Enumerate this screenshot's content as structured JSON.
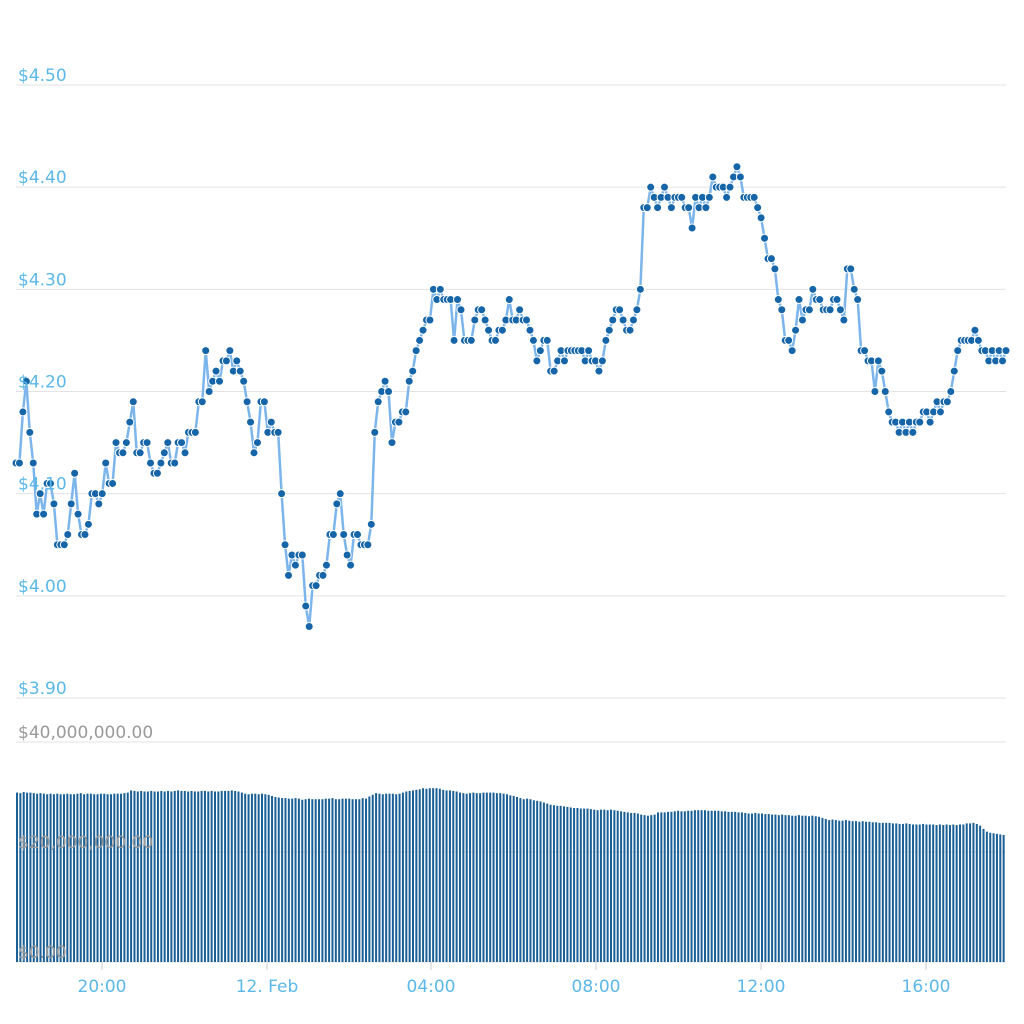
{
  "chart_data": {
    "type": "line",
    "price_axis": {
      "tick_labels": [
        "$3.90",
        "$4.00",
        "$4.10",
        "$4.20",
        "$4.30",
        "$4.40",
        "$4.50"
      ],
      "ticks": [
        3.9,
        4.0,
        4.1,
        4.2,
        4.3,
        4.4,
        4.5
      ],
      "range": [
        3.9,
        4.5
      ]
    },
    "volume_axis": {
      "tick_labels": [
        "$0.00",
        "$20,000,000.00",
        "$40,000,000.00"
      ],
      "ticks": [
        0,
        20000000,
        40000000
      ],
      "range": [
        0,
        40000000
      ]
    },
    "x_axis": {
      "tick_labels": [
        "20:00",
        "12. Feb",
        "04:00",
        "08:00",
        "12:00",
        "16:00"
      ]
    },
    "grid": true,
    "legend": "none",
    "colors": {
      "price_line": "#7cb5ec",
      "price_marker": "#1565a8",
      "volume_bar": "#1a5f96",
      "label": "#5bb8e8"
    },
    "series": [
      {
        "kind": "price",
        "values": [
          4.13,
          4.13,
          4.18,
          4.21,
          4.16,
          4.13,
          4.08,
          4.1,
          4.08,
          4.11,
          4.11,
          4.09,
          4.05,
          4.05,
          4.05,
          4.06,
          4.09,
          4.12,
          4.08,
          4.06,
          4.06,
          4.07,
          4.1,
          4.1,
          4.09,
          4.1,
          4.13,
          4.11,
          4.11,
          4.15,
          4.14,
          4.14,
          4.15,
          4.17,
          4.19,
          4.14,
          4.14,
          4.15,
          4.15,
          4.13,
          4.12,
          4.12,
          4.13,
          4.14,
          4.15,
          4.13,
          4.13,
          4.15,
          4.15,
          4.14,
          4.16,
          4.16,
          4.16,
          4.19,
          4.19,
          4.24,
          4.2,
          4.21,
          4.22,
          4.21,
          4.23,
          4.23,
          4.24,
          4.22,
          4.23,
          4.22,
          4.21,
          4.19,
          4.17,
          4.14,
          4.15,
          4.19,
          4.19,
          4.16,
          4.17,
          4.16,
          4.16,
          4.1,
          4.05,
          4.02,
          4.04,
          4.03,
          4.04,
          4.04,
          3.99,
          3.97,
          4.01,
          4.01,
          4.02,
          4.02,
          4.03,
          4.06,
          4.06,
          4.09,
          4.1,
          4.06,
          4.04,
          4.03,
          4.06,
          4.06,
          4.05,
          4.05,
          4.05,
          4.07,
          4.16,
          4.19,
          4.2,
          4.21,
          4.2,
          4.15,
          4.17,
          4.17,
          4.18,
          4.18,
          4.21,
          4.22,
          4.24,
          4.25,
          4.26,
          4.27,
          4.27,
          4.3,
          4.29,
          4.3,
          4.29,
          4.29,
          4.29,
          4.25,
          4.29,
          4.28,
          4.25,
          4.25,
          4.25,
          4.27,
          4.28,
          4.28,
          4.27,
          4.26,
          4.25,
          4.25,
          4.26,
          4.26,
          4.27,
          4.29,
          4.27,
          4.27,
          4.28,
          4.27,
          4.27,
          4.26,
          4.25,
          4.23,
          4.24,
          4.25,
          4.25,
          4.22,
          4.22,
          4.23,
          4.24,
          4.23,
          4.24,
          4.24,
          4.24,
          4.24,
          4.24,
          4.23,
          4.24,
          4.23,
          4.23,
          4.22,
          4.23,
          4.25,
          4.26,
          4.27,
          4.28,
          4.28,
          4.27,
          4.26,
          4.26,
          4.27,
          4.28,
          4.3,
          4.38,
          4.38,
          4.4,
          4.39,
          4.38,
          4.39,
          4.4,
          4.39,
          4.38,
          4.39,
          4.39,
          4.39,
          4.38,
          4.38,
          4.36,
          4.39,
          4.38,
          4.39,
          4.38,
          4.39,
          4.41,
          4.4,
          4.4,
          4.4,
          4.39,
          4.4,
          4.41,
          4.42,
          4.41,
          4.39,
          4.39,
          4.39,
          4.39,
          4.38,
          4.37,
          4.35,
          4.33,
          4.33,
          4.32,
          4.29,
          4.28,
          4.25,
          4.25,
          4.24,
          4.26,
          4.29,
          4.27,
          4.28,
          4.28,
          4.3,
          4.29,
          4.29,
          4.28,
          4.28,
          4.28,
          4.29,
          4.29,
          4.28,
          4.27,
          4.32,
          4.32,
          4.3,
          4.29,
          4.24,
          4.24,
          4.23,
          4.23,
          4.2,
          4.23,
          4.22,
          4.2,
          4.18,
          4.17,
          4.17,
          4.16,
          4.17,
          4.16,
          4.17,
          4.16,
          4.17,
          4.17,
          4.18,
          4.18,
          4.17,
          4.18,
          4.19,
          4.18,
          4.19,
          4.19,
          4.2,
          4.22,
          4.24,
          4.25,
          4.25,
          4.25,
          4.25,
          4.26,
          4.25,
          4.24,
          4.24,
          4.23,
          4.24,
          4.23,
          4.24,
          4.23,
          4.24
        ]
      },
      {
        "kind": "volume",
        "values": [
          30.8,
          30.7,
          30.9,
          30.8,
          30.8,
          30.7,
          30.6,
          30.7,
          30.6,
          30.5,
          30.6,
          30.5,
          30.6,
          30.5,
          30.5,
          30.6,
          30.5,
          30.5,
          30.6,
          30.7,
          30.5,
          30.6,
          30.6,
          30.5,
          30.5,
          30.6,
          30.6,
          30.5,
          30.5,
          30.6,
          30.6,
          30.6,
          30.7,
          30.8,
          31.2,
          31.1,
          31.0,
          31.1,
          31.0,
          31.0,
          31.1,
          31.0,
          31.0,
          31.1,
          31.0,
          31.1,
          31.0,
          31.1,
          31.2,
          31.1,
          31.1,
          31.0,
          31.1,
          31.0,
          31.0,
          31.1,
          31.1,
          31.0,
          31.1,
          31.0,
          31.0,
          31.1,
          31.1,
          31.1,
          31.2,
          31.1,
          31.0,
          30.8,
          30.6,
          30.5,
          30.6,
          30.6,
          30.5,
          30.6,
          30.5,
          30.4,
          30.2,
          30.0,
          29.9,
          29.8,
          29.8,
          29.7,
          29.7,
          29.8,
          29.7,
          29.5,
          29.6,
          29.7,
          29.6,
          29.6,
          29.6,
          29.6,
          29.7,
          29.7,
          29.8,
          29.6,
          29.6,
          29.7,
          29.7,
          29.7,
          29.6,
          29.6,
          29.6,
          29.8,
          29.7,
          30.1,
          30.4,
          30.7,
          30.6,
          30.5,
          30.6,
          30.6,
          30.6,
          30.5,
          30.6,
          30.8,
          31.0,
          31.1,
          31.2,
          31.3,
          31.4,
          31.6,
          31.5,
          31.6,
          31.6,
          31.6,
          31.5,
          31.3,
          31.2,
          31.2,
          31.1,
          31.0,
          30.8,
          30.7,
          30.6,
          30.7,
          30.8,
          30.7,
          30.7,
          30.8,
          30.8,
          30.8,
          30.8,
          30.7,
          30.7,
          30.6,
          30.5,
          30.3,
          30.2,
          30.0,
          29.8,
          29.6,
          29.7,
          29.6,
          29.4,
          29.3,
          29.2,
          29.0,
          28.8,
          28.6,
          28.5,
          28.4,
          28.4,
          28.3,
          28.2,
          28.1,
          28.0,
          28.0,
          27.9,
          27.9,
          27.9,
          27.8,
          27.7,
          27.6,
          27.7,
          27.7,
          27.6,
          27.7,
          27.6,
          27.5,
          27.4,
          27.3,
          27.2,
          27.1,
          27.1,
          27.0,
          26.8,
          26.7,
          26.6,
          26.7,
          26.8,
          27.2,
          27.2,
          27.2,
          27.3,
          27.3,
          27.4,
          27.5,
          27.4,
          27.4,
          27.5,
          27.5,
          27.6,
          27.6,
          27.6,
          27.6,
          27.5,
          27.5,
          27.5,
          27.5,
          27.4,
          27.4,
          27.3,
          27.3,
          27.3,
          27.2,
          27.2,
          27.1,
          27.0,
          27.0,
          27.1,
          27.0,
          27.0,
          26.9,
          26.9,
          26.8,
          26.8,
          26.7,
          26.8,
          26.7,
          26.7,
          26.6,
          26.6,
          26.7,
          26.6,
          26.6,
          26.5,
          26.6,
          26.5,
          26.4,
          26.2,
          26.0,
          25.8,
          25.9,
          25.8,
          25.7,
          25.7,
          25.8,
          25.7,
          25.6,
          25.6,
          25.5,
          25.6,
          25.5,
          25.5,
          25.4,
          25.4,
          25.3,
          25.3,
          25.3,
          25.3,
          25.2,
          25.2,
          25.1,
          25.1,
          25.2,
          25.1,
          25.0,
          25.0,
          25.0,
          25.1,
          25.0,
          25.0,
          25.0,
          24.9,
          25.0,
          24.9,
          25.0,
          24.9,
          25.0,
          24.9,
          25.0,
          25.0,
          25.2,
          25.2,
          25.3,
          25.1,
          24.8,
          24.2,
          23.7,
          23.5,
          23.4,
          23.3,
          23.2,
          23.1
        ]
      }
    ]
  }
}
